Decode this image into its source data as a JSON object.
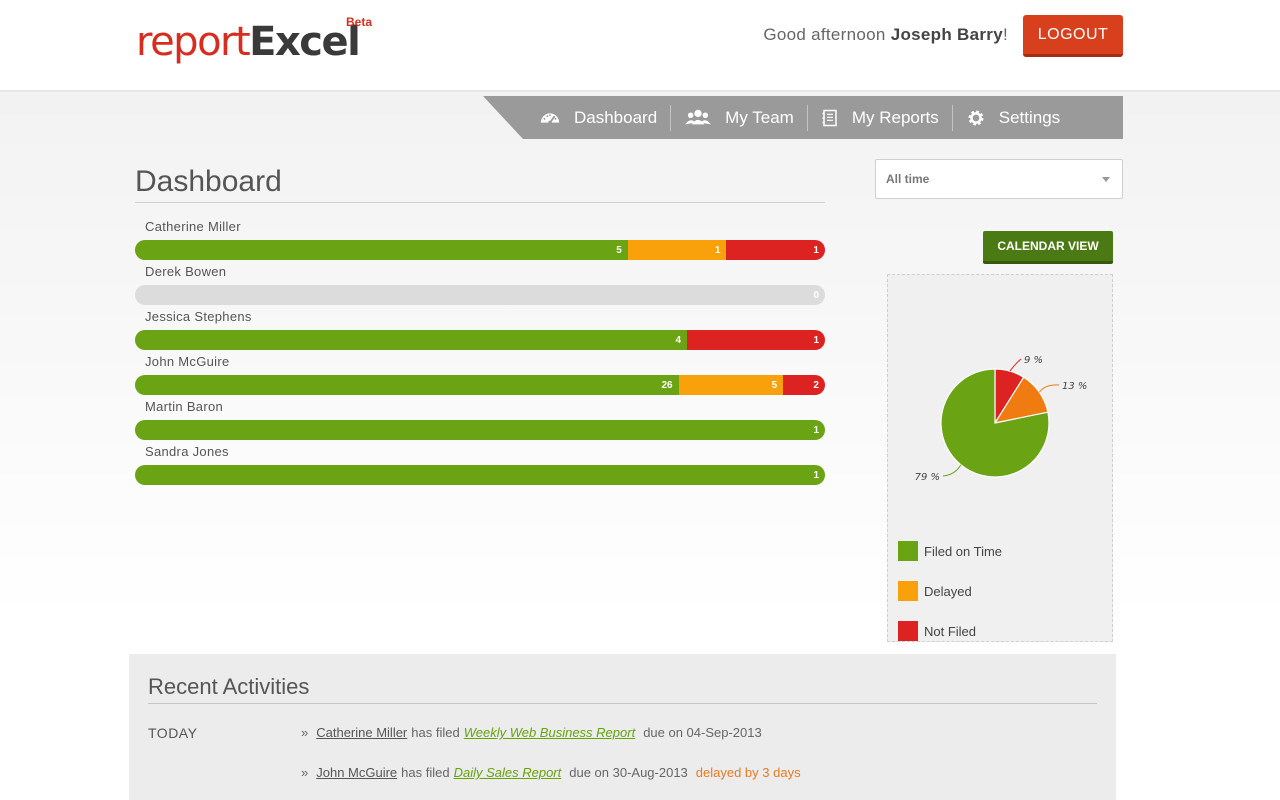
{
  "header": {
    "logo_part1": "report",
    "logo_part2": "Excel",
    "logo_badge": "Beta",
    "greeting_prefix": "Good afternoon",
    "user_name": "Joseph Barry",
    "greeting_suffix": "!",
    "logout_label": "LOGOUT"
  },
  "nav": {
    "items": [
      {
        "label": "Dashboard",
        "icon": "speedometer-icon"
      },
      {
        "label": "My Team",
        "icon": "team-icon"
      },
      {
        "label": "My Reports",
        "icon": "notebook-icon"
      },
      {
        "label": "Settings",
        "icon": "gear-icon"
      }
    ]
  },
  "dashboard": {
    "title": "Dashboard",
    "rows": [
      {
        "name": "Catherine Miller",
        "on_time": 5,
        "delayed": 1,
        "not_filed": 1
      },
      {
        "name": "Derek Bowen",
        "on_time": 0,
        "delayed": 0,
        "not_filed": 0
      },
      {
        "name": "Jessica Stephens",
        "on_time": 4,
        "delayed": 0,
        "not_filed": 1
      },
      {
        "name": "John McGuire",
        "on_time": 26,
        "delayed": 5,
        "not_filed": 2
      },
      {
        "name": "Martin Baron",
        "on_time": 1,
        "delayed": 0,
        "not_filed": 0
      },
      {
        "name": "Sandra Jones",
        "on_time": 1,
        "delayed": 0,
        "not_filed": 0
      }
    ]
  },
  "filters": {
    "time_range": "All time",
    "calendar_button": "CALENDAR VIEW"
  },
  "colors": {
    "on_time": "#6aa314",
    "delayed": "#f9a10a",
    "not_filed": "#dd2222",
    "empty": "#dcdcdc"
  },
  "chart_data": {
    "type": "pie",
    "slices": [
      {
        "label": "Filed on Time",
        "value": 79,
        "display": "79 %"
      },
      {
        "label": "Not Filed",
        "value": 9,
        "display": "9 %"
      },
      {
        "label": "Delayed",
        "value": 13,
        "display": "13 %"
      }
    ],
    "legend": [
      "Filed on Time",
      "Delayed",
      "Not Filed"
    ],
    "legend_position": "bottom"
  },
  "activities": {
    "title": "Recent Activities",
    "day_label": "TODAY",
    "items": [
      {
        "user": "Catherine Miller",
        "verb": "has filed",
        "report": "Weekly Web Business Report",
        "due": "due on 04-Sep-2013",
        "delay": ""
      },
      {
        "user": "John McGuire",
        "verb": "has filed",
        "report": "Daily Sales Report",
        "due": "due on 30-Aug-2013",
        "delay": "delayed by 3 days"
      }
    ]
  }
}
